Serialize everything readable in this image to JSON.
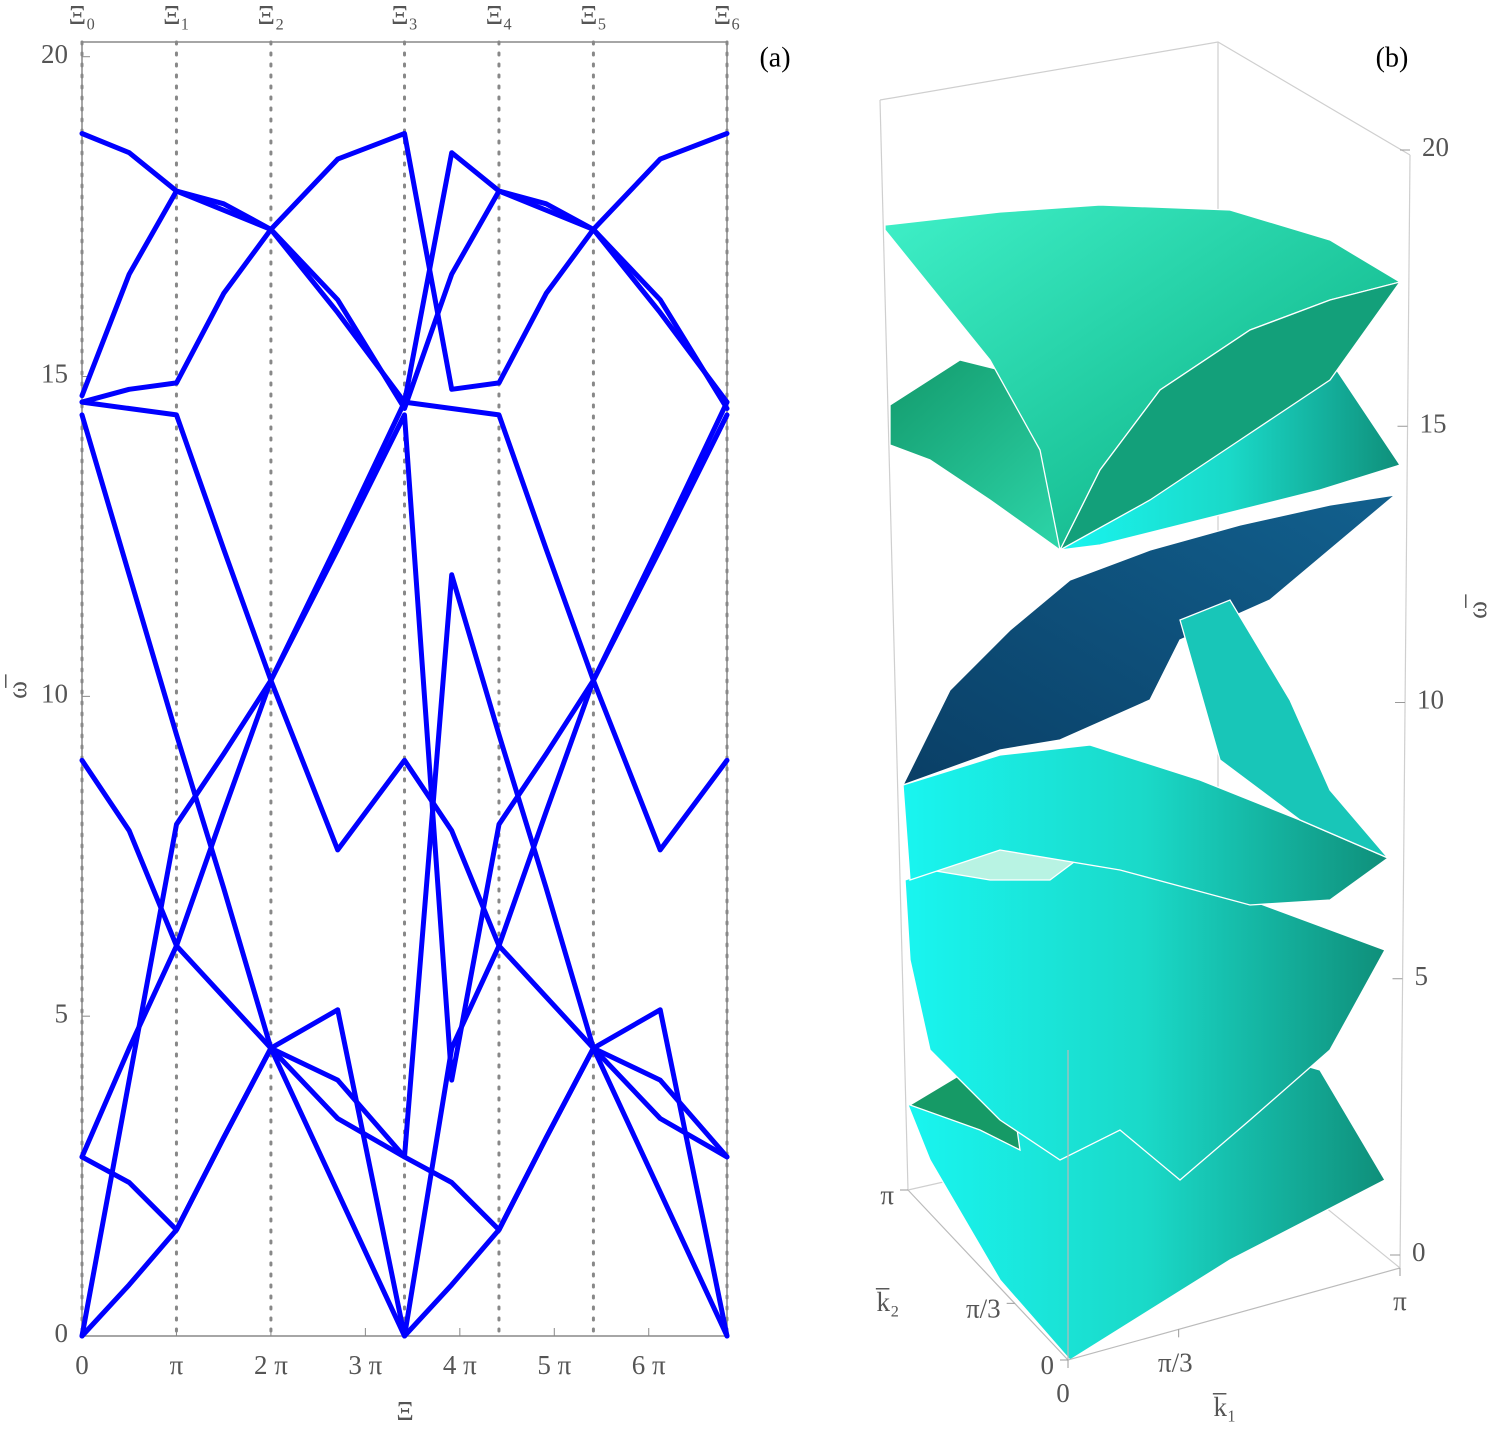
{
  "chart_data": [
    {
      "type": "line",
      "panel_label": "(a)",
      "x_label": "Ξ",
      "y_label": "ω̅",
      "x": [
        0,
        1.5708,
        3.1416,
        4.7124,
        6.2832,
        8.5046,
        10.7261,
        12.2969,
        13.8677,
        15.4385,
        17.0093,
        19.2307,
        21.4522
      ],
      "series": [
        {
          "color": "#0000ff",
          "values": [
            0,
            0.8,
            1.66,
            3.1,
            4.5,
            2.25,
            0,
            0.8,
            1.66,
            3.1,
            4.5,
            2.25,
            0
          ]
        },
        {
          "color": "#0000ff",
          "values": [
            2.8,
            2.4,
            1.66,
            3.1,
            4.5,
            3.4,
            2.8,
            2.4,
            1.66,
            3.1,
            4.5,
            3.4,
            2.8
          ]
        },
        {
          "color": "#0000ff",
          "values": [
            0,
            4.0,
            8.0,
            9.1,
            10.25,
            12.3,
            14.4,
            4.0,
            8.0,
            9.1,
            10.25,
            12.3,
            14.4
          ]
        },
        {
          "color": "#0000ff",
          "values": [
            2.8,
            4.5,
            6.1,
            5.3,
            4.5,
            5.1,
            0,
            4.5,
            6.1,
            5.3,
            4.5,
            5.1,
            0
          ]
        },
        {
          "color": "#0000ff",
          "values": [
            9.0,
            7.9,
            6.1,
            8.2,
            10.25,
            7.6,
            9.0,
            7.9,
            6.1,
            8.2,
            10.25,
            7.6,
            9.0
          ]
        },
        {
          "color": "#0000ff",
          "values": [
            14.4,
            11.9,
            9.4,
            7.0,
            4.5,
            4.0,
            2.8,
            11.9,
            9.4,
            7.0,
            4.5,
            4.0,
            2.8
          ]
        },
        {
          "color": "#0000ff",
          "values": [
            14.6,
            14.5,
            14.4,
            12.3,
            10.25,
            12.4,
            14.6,
            14.5,
            14.4,
            12.3,
            10.25,
            12.4,
            14.6
          ]
        },
        {
          "color": "#0000ff",
          "values": [
            14.7,
            16.6,
            17.9,
            17.6,
            17.3,
            16.2,
            14.5,
            16.6,
            17.9,
            17.6,
            17.3,
            16.2,
            14.5
          ]
        },
        {
          "color": "#0000ff",
          "values": [
            14.6,
            14.8,
            14.9,
            16.3,
            17.3,
            18.4,
            18.8,
            14.8,
            14.9,
            16.3,
            17.3,
            18.4,
            18.8
          ]
        },
        {
          "color": "#0000ff",
          "values": [
            18.8,
            18.5,
            17.9,
            17.7,
            17.3,
            16.0,
            14.6,
            18.5,
            17.9,
            17.7,
            17.3,
            16.0,
            14.6
          ]
        }
      ],
      "xlim": [
        0,
        21.4522
      ],
      "xticks": [
        0,
        {
          "value": 3.1416,
          "label": "π"
        },
        {
          "value": 6.2832,
          "label": "2 π"
        },
        {
          "value": 9.4248,
          "label": "3 π"
        },
        {
          "value": 12.5664,
          "label": "4 π"
        },
        {
          "value": 15.708,
          "label": "5 π"
        },
        {
          "value": 18.8496,
          "label": "6 π"
        }
      ],
      "x2ticks": [
        {
          "value": 0,
          "label": "Ξ₀"
        },
        {
          "value": 3.1416,
          "label": "Ξ₁"
        },
        {
          "value": 6.2832,
          "label": "Ξ₂"
        },
        {
          "value": 10.7261,
          "label": "Ξ₃"
        },
        {
          "value": 13.8677,
          "label": "Ξ₄"
        },
        {
          "value": 17.0093,
          "label": "Ξ₅"
        },
        {
          "value": 21.4522,
          "label": "Ξ₆"
        }
      ],
      "ylim": [
        0,
        20.23
      ],
      "yticks": [
        0,
        5,
        10,
        15,
        20
      ]
    },
    {
      "type": "surface3d",
      "panel_label": "(b)",
      "x_label": "k̅₁",
      "y_label": "k̅₂",
      "z_label": "ω̅",
      "xlim": [
        0,
        3.1416
      ],
      "xticks": [
        0,
        {
          "value": 1.0472,
          "label": "π/3"
        },
        {
          "value": 3.1416,
          "label": "π"
        }
      ],
      "ylim": [
        0,
        3.1416
      ],
      "yticks": [
        0,
        {
          "value": 1.0472,
          "label": "π/3"
        },
        {
          "value": 3.1416,
          "label": "π"
        }
      ],
      "zlim": [
        0,
        20
      ],
      "zticks": [
        0,
        5,
        10,
        15,
        20
      ]
    }
  ]
}
